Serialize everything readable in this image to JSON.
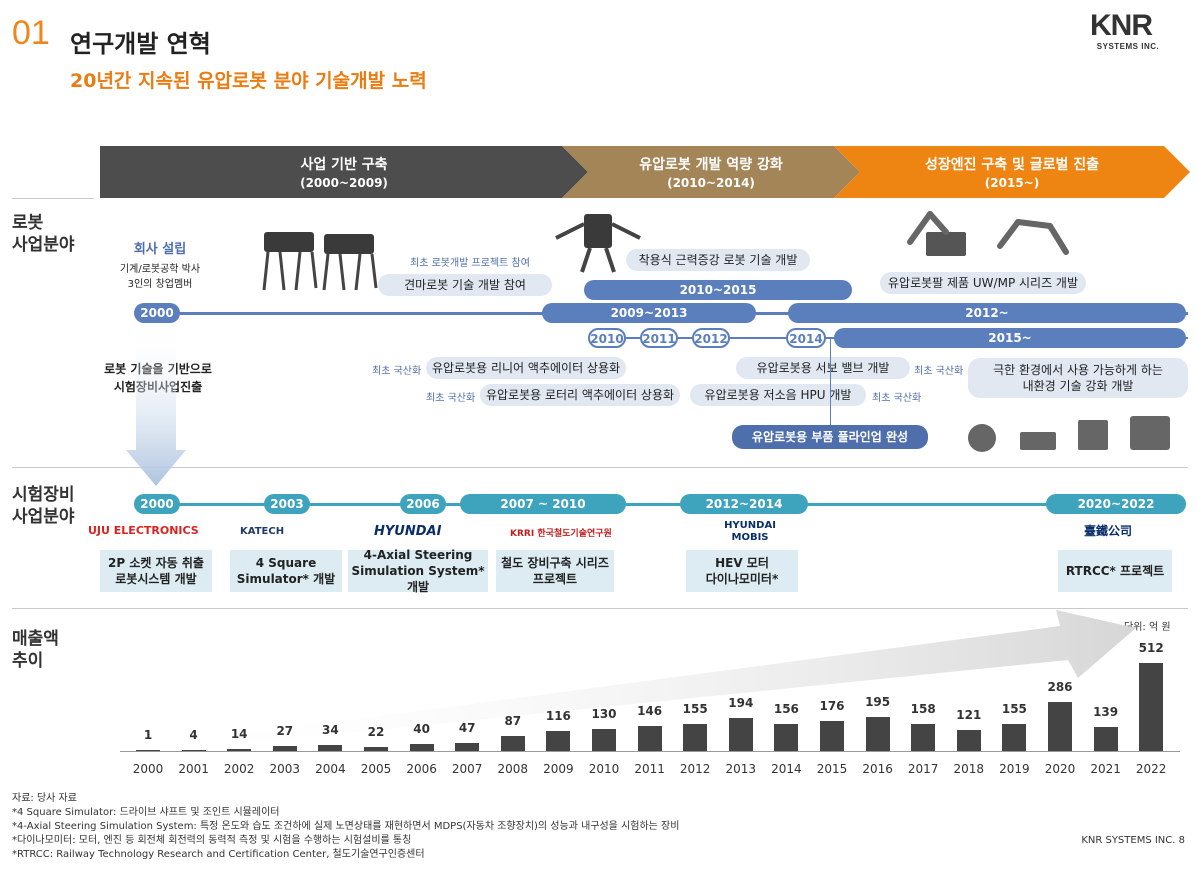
{
  "header": {
    "section_number": "01",
    "title": "연구개발 연혁",
    "subtitle": "20년간 지속된 유압로봇 분야 기술개발 노력",
    "logo_main": "KNR",
    "logo_sub": "SYSTEMS INC."
  },
  "phases": [
    {
      "title": "사업 기반 구축",
      "period": "(2000~2009)"
    },
    {
      "title": "유압로봇 개발 역량 강화",
      "period": "(2010~2014)"
    },
    {
      "title": "성장엔진 구축 및 글로벌 진출",
      "period": "(2015~)"
    }
  ],
  "robot": {
    "label_line1": "로봇",
    "label_line2": "사업분야",
    "founding_title": "회사 설립",
    "founding_line1": "기계/로봇공학 박사",
    "founding_line2": "3인의 창업멤버",
    "first_project_tag": "최초 로봇개발 프로젝트 참여",
    "box_dog_robot": "견마로봇 기술 개발 참여",
    "box_wearable": "착용식 근력증강 로봇 기술 개발",
    "box_arm": "유압로봇팔 제품 UW/MP 시리즈 개발",
    "year_2000": "2000",
    "period_2010_2015": "2010~2015",
    "period_2009_2013": "2009~2013",
    "period_2012": "2012~",
    "year_2010": "2010",
    "year_2011": "2011",
    "year_2012": "2012",
    "year_2014": "2014",
    "period_2015": "2015~",
    "tag_domestic": "최초 국산화",
    "box_linear": "유압로봇용 리니어 액추에이터 상용화",
    "box_rotary": "유압로봇용 로터리 액추에이터 상용화",
    "box_hpu": "유압로봇용 저소음 HPU 개발",
    "box_servo": "유압로봇용 서보 밸브 개발",
    "box_env_line1": "극한 환경에서 사용 가능하게 하는",
    "box_env_line2": "내환경 기술 강화 개발",
    "box_lineup": "유압로봇용 부품 풀라인업 완성",
    "transition_line1": "로봇 기술을 기반으로",
    "transition_line2": "시험장비사업진출"
  },
  "test_equipment": {
    "label_line1": "시험장비",
    "label_line2": "사업분야",
    "milestones": [
      "2000",
      "2003",
      "2006",
      "2007 ~ 2010",
      "2012~2014",
      "2020~2022"
    ],
    "logos": [
      "UJU ELECTRONICS",
      "KATECH",
      "HYUNDAI",
      "KRRI 한국철도기술연구원",
      "HYUNDAI MOBIS",
      "臺鐵公司"
    ],
    "projects": [
      {
        "line1": "2P 소켓 자동 취출",
        "line2": "로봇시스템 개발"
      },
      {
        "line1": "4 Square",
        "line2": "Simulator* 개발"
      },
      {
        "line1": "4-Axial Steering",
        "line2": "Simulation System* 개발"
      },
      {
        "line1": "철도 장비구축 시리즈",
        "line2": "프로젝트"
      },
      {
        "line1": "HEV 모터",
        "line2": "다이나모미터*"
      },
      {
        "line1": "RTRCC* 프로젝트",
        "line2": ""
      }
    ]
  },
  "revenue": {
    "label_line1": "매출액",
    "label_line2": "추이",
    "unit": "단위: 억 원"
  },
  "chart_data": {
    "type": "bar",
    "categories": [
      "2000",
      "2001",
      "2002",
      "2003",
      "2004",
      "2005",
      "2006",
      "2007",
      "2008",
      "2009",
      "2010",
      "2011",
      "2012",
      "2013",
      "2014",
      "2015",
      "2016",
      "2017",
      "2018",
      "2019",
      "2020",
      "2021",
      "2022"
    ],
    "values": [
      1,
      4,
      14,
      27,
      34,
      22,
      40,
      47,
      87,
      116,
      130,
      146,
      155,
      194,
      156,
      176,
      195,
      158,
      121,
      155,
      286,
      139,
      512
    ],
    "ylabel": "단위: 억 원",
    "ylim": [
      0,
      512
    ]
  },
  "footnotes": [
    "자료: 당사 자료",
    "*4 Square Simulator: 드라이브 샤프트 및 조인트 시뮬레이터",
    "*4-Axial Steering Simulation System: 특정 온도와 습도 조건하에 실제 노면상태를 재현하면서 MDPS(자동차 조향장치)의 성능과 내구성을 시험하는 장비",
    "*다이나모미터: 모터, 엔진 등 회전체 회전력의 동력적 측정 및 시험을 수행하는 시험설비를 통칭",
    "*RTRCC: Railway Technology Research and Certification Center, 철도기술연구인증센터"
  ],
  "footer": "KNR SYSTEMS INC.  8",
  "colors": {
    "accent_orange": "#ee8411",
    "timeline_blue": "#5b7fbc",
    "teal": "#3ea3bd",
    "phase_dark": "#4d4d4d",
    "phase_brown": "#a38558"
  }
}
